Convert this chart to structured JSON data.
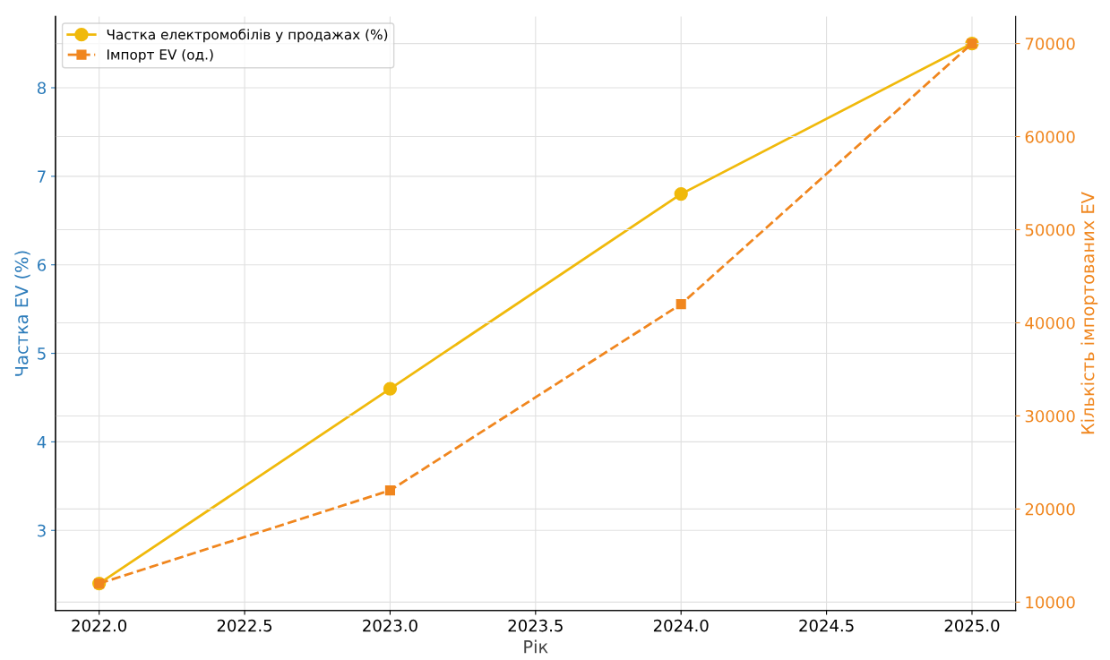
{
  "chart_data": {
    "type": "line",
    "xlabel": "Рік",
    "ylabel": "Частка EV (%)",
    "y2label": "Кількість імпортованих EV",
    "x": [
      2022,
      2023,
      2024,
      2025
    ],
    "series": [
      {
        "name": "Частка електромобілів у продажах (%)",
        "color": "#f0b90b",
        "values": [
          2.4,
          4.6,
          6.8,
          8.5
        ],
        "marker": "circle",
        "line_style": "solid"
      },
      {
        "name": "Імпорт EV (од.)",
        "color": "#f0861e",
        "values": [
          12000,
          22000,
          42000,
          70000
        ],
        "axis": "y2",
        "marker": "square",
        "line_style": "dashed"
      }
    ],
    "xlim": [
      2021.85,
      2025.15
    ],
    "xticks": [
      {
        "value": 2022,
        "label": "2022.0"
      },
      {
        "value": 2022.5,
        "label": "2022.5"
      },
      {
        "value": 2023,
        "label": "2023.0"
      },
      {
        "value": 2023.5,
        "label": "2023.5"
      },
      {
        "value": 2024,
        "label": "2024.0"
      },
      {
        "value": 2024.5,
        "label": "2024.5"
      },
      {
        "value": 2025,
        "label": "2025.0"
      }
    ],
    "ylim": [
      2.095,
      8.805
    ],
    "yticks": [
      3,
      4,
      5,
      6,
      7,
      8
    ],
    "y2lim": [
      9100,
      72900
    ],
    "y2ticks": [
      10000,
      20000,
      30000,
      40000,
      50000,
      60000,
      70000
    ],
    "grid": true,
    "legend": "top left"
  }
}
